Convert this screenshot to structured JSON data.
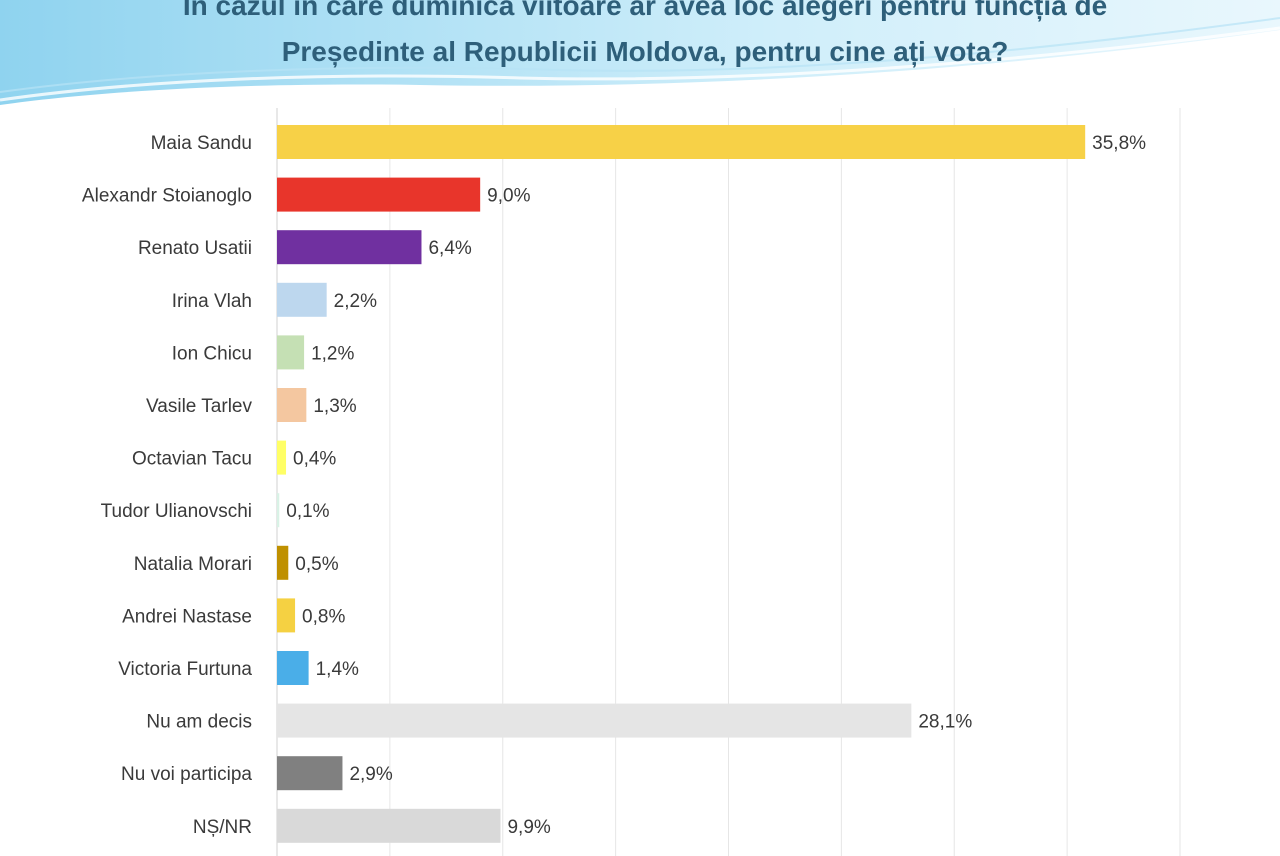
{
  "header": {
    "title_line_1": "În cazul în care duminica viitoare ar avea loc alegeri pentru funcția de",
    "title_line_2": "Președinte al Republicii Moldova, pentru cine ați vota?"
  },
  "chart_data": {
    "type": "bar",
    "orientation": "horizontal",
    "title": "În cazul în care duminica viitoare ar avea loc alegeri pentru funcția de Președinte al Republicii Moldova, pentru cine ați vota?",
    "categories": [
      "Maia Sandu",
      "Alexandr Stoianoglo",
      "Renato Usatii",
      "Irina Vlah",
      "Ion Chicu",
      "Vasile Tarlev",
      "Octavian Tacu",
      "Tudor Ulianovschi",
      "Natalia Morari",
      "Andrei Nastase",
      "Victoria Furtuna",
      "Nu am decis",
      "Nu voi participa",
      "NȘ/NR"
    ],
    "values": [
      35.8,
      9.0,
      6.4,
      2.2,
      1.2,
      1.3,
      0.4,
      0.1,
      0.5,
      0.8,
      1.4,
      28.1,
      2.9,
      9.9
    ],
    "value_labels": [
      "35,8%",
      "9,0%",
      "6,4%",
      "2,2%",
      "1,2%",
      "1,3%",
      "0,4%",
      "0,1%",
      "0,5%",
      "0,8%",
      "1,4%",
      "28,1%",
      "2,9%",
      "9,9%"
    ],
    "colors": [
      "#f7d147",
      "#e8352b",
      "#7030a0",
      "#bdd7ee",
      "#c5e0b4",
      "#f4c7a0",
      "#ffff66",
      "#d9f2e6",
      "#bf9000",
      "#f5d142",
      "#4aaee8",
      "#e5e5e5",
      "#808080",
      "#d9d9d9"
    ],
    "xlim": [
      0,
      40
    ],
    "xlabel": "",
    "ylabel": "",
    "grid": true,
    "legend": "none"
  }
}
